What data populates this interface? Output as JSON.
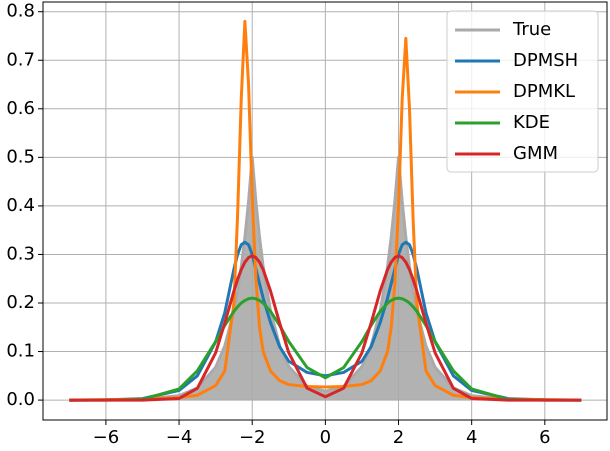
{
  "chart_data": {
    "type": "line",
    "x": [
      -7,
      -6,
      -5,
      -4,
      -3.5,
      -3,
      -2.75,
      -2.5,
      -2.4,
      -2.3,
      -2.2,
      -2.1,
      -2,
      -1.9,
      -1.8,
      -1.7,
      -1.5,
      -1.25,
      -1,
      -0.5,
      0,
      0.5,
      1,
      1.25,
      1.5,
      1.7,
      1.8,
      1.9,
      2,
      2.1,
      2.2,
      2.3,
      2.4,
      2.5,
      2.75,
      3,
      3.5,
      4,
      5,
      6,
      7
    ],
    "series": [
      {
        "name": "True",
        "color": "#aaaaaa",
        "filled": true,
        "values": [
          0,
          0.0002,
          0.0012,
          0.0092,
          0.0249,
          0.0677,
          0.1116,
          0.1839,
          0.2247,
          0.2744,
          0.3352,
          0.4094,
          0.5,
          0.4094,
          0.3352,
          0.2744,
          0.1839,
          0.1116,
          0.0689,
          0.0283,
          0.0183,
          0.0283,
          0.0689,
          0.1116,
          0.1839,
          0.2744,
          0.3352,
          0.4094,
          0.5,
          0.4094,
          0.3352,
          0.2744,
          0.2247,
          0.1839,
          0.1116,
          0.0677,
          0.0249,
          0.0092,
          0.0012,
          0.0002,
          0
        ]
      },
      {
        "name": "DPMSH",
        "color": "#1f77b4",
        "values": [
          0,
          0.0005,
          0.003,
          0.02,
          0.05,
          0.12,
          0.18,
          0.27,
          0.3,
          0.32,
          0.325,
          0.32,
          0.3,
          0.27,
          0.24,
          0.21,
          0.16,
          0.11,
          0.08,
          0.057,
          0.05,
          0.057,
          0.08,
          0.11,
          0.16,
          0.21,
          0.24,
          0.27,
          0.3,
          0.32,
          0.325,
          0.32,
          0.3,
          0.27,
          0.18,
          0.12,
          0.05,
          0.02,
          0.003,
          0.0005,
          0
        ]
      },
      {
        "name": "DPMKL",
        "color": "#ff7f0e",
        "values": [
          0,
          0.001,
          0.002,
          0.005,
          0.01,
          0.03,
          0.06,
          0.2,
          0.38,
          0.62,
          0.78,
          0.65,
          0.42,
          0.25,
          0.15,
          0.1,
          0.06,
          0.04,
          0.032,
          0.028,
          0.027,
          0.028,
          0.032,
          0.04,
          0.06,
          0.1,
          0.15,
          0.24,
          0.4,
          0.62,
          0.745,
          0.6,
          0.37,
          0.2,
          0.06,
          0.03,
          0.01,
          0.005,
          0.002,
          0.001,
          0
        ]
      },
      {
        "name": "KDE",
        "color": "#2ca02c",
        "values": [
          0,
          0,
          0.0014,
          0.0229,
          0.0604,
          0.1207,
          0.1538,
          0.1828,
          0.1922,
          0.1998,
          0.2053,
          0.2088,
          0.21,
          0.2088,
          0.2053,
          0.1998,
          0.1828,
          0.1538,
          0.1207,
          0.067,
          0.0458,
          0.067,
          0.1207,
          0.1538,
          0.1828,
          0.1998,
          0.2053,
          0.2088,
          0.21,
          0.2088,
          0.2053,
          0.1998,
          0.1922,
          0.1828,
          0.1538,
          0.1207,
          0.0604,
          0.0229,
          0.0014,
          0,
          0
        ]
      },
      {
        "name": "GMM",
        "color": "#d62728",
        "values": [
          0,
          0,
          0,
          0.0034,
          0.0242,
          0.0975,
          0.1587,
          0.2249,
          0.2485,
          0.2687,
          0.2841,
          0.2937,
          0.297,
          0.2937,
          0.2841,
          0.2687,
          0.2249,
          0.1587,
          0.0975,
          0.0245,
          0.0069,
          0.0245,
          0.0975,
          0.1587,
          0.2249,
          0.2687,
          0.2841,
          0.2937,
          0.297,
          0.2937,
          0.2841,
          0.2687,
          0.2485,
          0.2249,
          0.1587,
          0.0975,
          0.0242,
          0.0034,
          0,
          0,
          0
        ]
      }
    ],
    "xlim": [
      -7.72,
      7.7
    ],
    "ylim": [
      -0.041,
      0.82
    ],
    "xticks": [
      {
        "value": -6,
        "label": "−6"
      },
      {
        "value": -4,
        "label": "−4"
      },
      {
        "value": -2,
        "label": "−2"
      },
      0,
      2,
      4,
      6
    ],
    "yticks": [
      {
        "value": 0,
        "label": "0.0"
      },
      0.1,
      0.2,
      0.3,
      0.4,
      0.5,
      0.6,
      0.7,
      0.8
    ],
    "grid": true,
    "legend": "upper right"
  }
}
